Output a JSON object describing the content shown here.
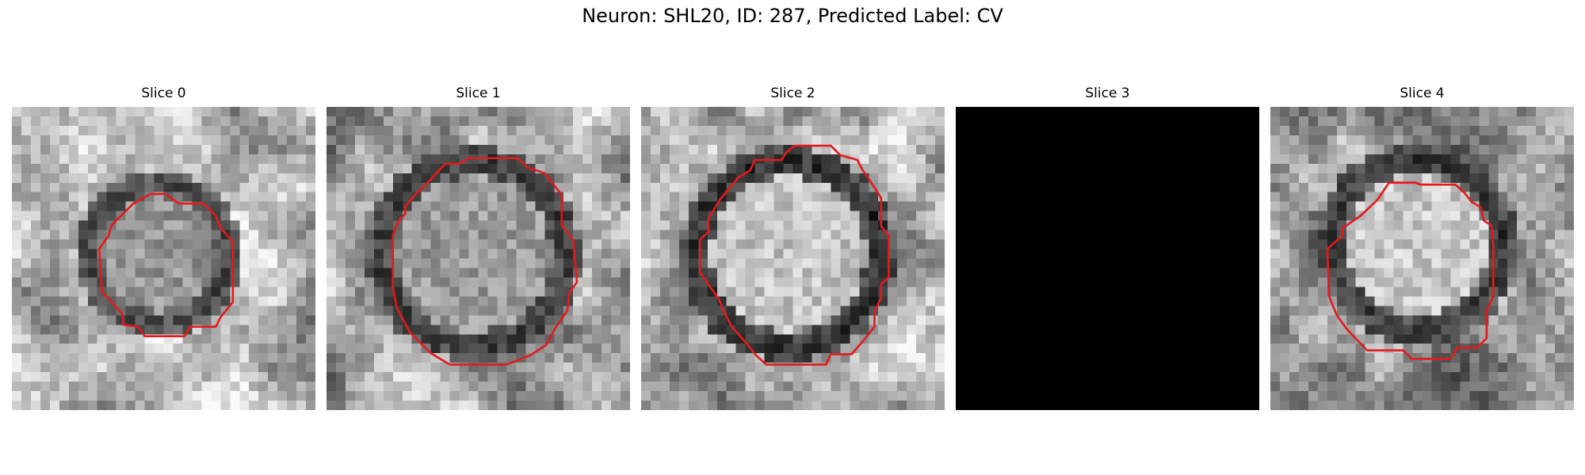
{
  "figure": {
    "title": "Neuron: SHL20, ID: 287, Predicted Label: CV"
  },
  "colors": {
    "contour": "#e31a1c",
    "background": "#ffffff"
  },
  "panels": [
    {
      "title": "Slice 0",
      "blank": false
    },
    {
      "title": "Slice 1",
      "blank": false
    },
    {
      "title": "Slice 2",
      "blank": false
    },
    {
      "title": "Slice 3",
      "blank": true
    },
    {
      "title": "Slice 4",
      "blank": false
    }
  ]
}
